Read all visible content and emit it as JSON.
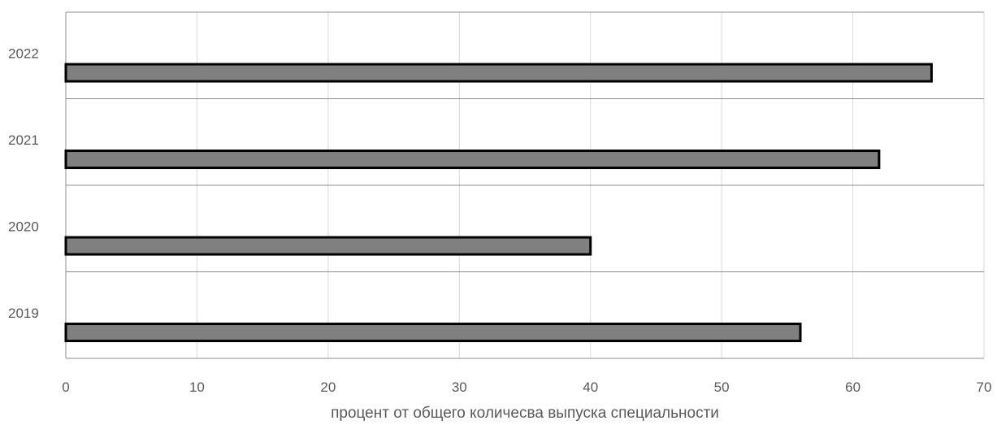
{
  "chart_data": {
    "type": "bar",
    "orientation": "horizontal",
    "categories": [
      "2019",
      "2020",
      "2021",
      "2022"
    ],
    "values": [
      56,
      40,
      62,
      66
    ],
    "xlabel": "процент от общего количесва выпуска специальности",
    "xlim": [
      0,
      70
    ],
    "xticks": [
      "0",
      "10",
      "20",
      "30",
      "40",
      "50",
      "60",
      "70"
    ],
    "grid": true,
    "legend": "none",
    "colors": {
      "bar_fill": "#808080",
      "bar_stroke": "#000000",
      "grid": "#d9d9d9",
      "row_divider": "#8c8c8c",
      "text": "#595959"
    }
  }
}
